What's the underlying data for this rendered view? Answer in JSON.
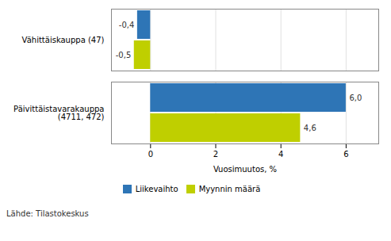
{
  "chart_data": {
    "type": "bar",
    "orientation": "horizontal",
    "categories": [
      "Päivittäistavarakauppa (4711, 472)",
      "Vähittäiskauppa (47)"
    ],
    "series": [
      {
        "name": "Liikevaihto",
        "color": "#2E75B6",
        "values": [
          6.0,
          -0.4
        ],
        "value_labels": [
          "6,0",
          "-0,4"
        ]
      },
      {
        "name": "Myynnin määrä",
        "color": "#BFCF00",
        "values": [
          4.6,
          -0.5
        ],
        "value_labels": [
          "4,6",
          "-0,5"
        ]
      }
    ],
    "xlabel": "Vuosimuutos, %",
    "xlim": [
      -1.2,
      7.0
    ],
    "xticks": [
      0,
      2,
      4,
      6
    ],
    "grid": true,
    "legend": "bottom",
    "data_labels": true,
    "caption": "Lähde: Tilastokeskus"
  }
}
